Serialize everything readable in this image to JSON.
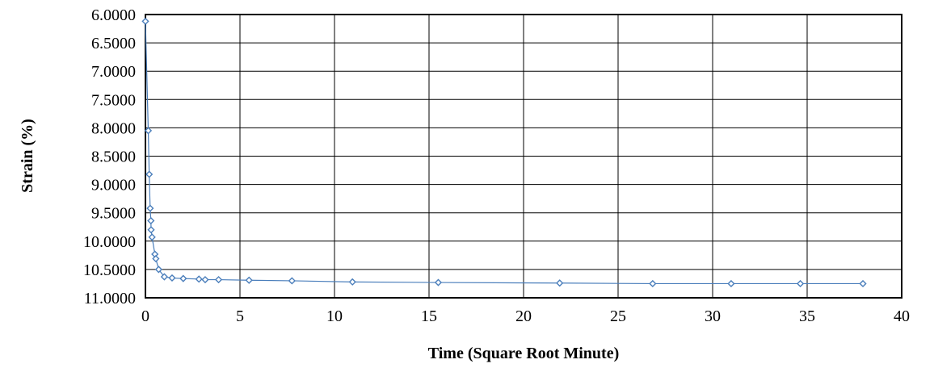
{
  "chart_data": {
    "type": "scatter",
    "xlabel": "Time (Square Root Minute)",
    "ylabel": "Strain (%)",
    "xlim": [
      0,
      40
    ],
    "ylim": [
      6.0,
      11.0
    ],
    "y_inverted": true,
    "grid": true,
    "x_ticks": [
      "0",
      "5",
      "10",
      "15",
      "20",
      "25",
      "30",
      "35",
      "40"
    ],
    "y_ticks": [
      "6.0000",
      "6.5000",
      "7.0000",
      "7.5000",
      "8.0000",
      "8.5000",
      "9.0000",
      "9.5000",
      "10.0000",
      "10.5000",
      "11.0000"
    ],
    "series": [
      {
        "color": "#4a7ebb",
        "x": [
          0,
          0.15,
          0.2,
          0.25,
          0.29,
          0.3,
          0.35,
          0.5,
          0.55,
          0.7,
          1.0,
          1.41,
          2.0,
          2.83,
          3.16,
          3.87,
          5.48,
          7.75,
          10.95,
          15.49,
          21.91,
          26.83,
          30.98,
          34.64,
          37.95
        ],
        "y": [
          6.12,
          8.05,
          8.82,
          9.42,
          9.64,
          9.8,
          9.93,
          10.23,
          10.31,
          10.5,
          10.63,
          10.65,
          10.66,
          10.67,
          10.68,
          10.68,
          10.69,
          10.7,
          10.72,
          10.73,
          10.74,
          10.75,
          10.75,
          10.75,
          10.75
        ]
      }
    ]
  }
}
